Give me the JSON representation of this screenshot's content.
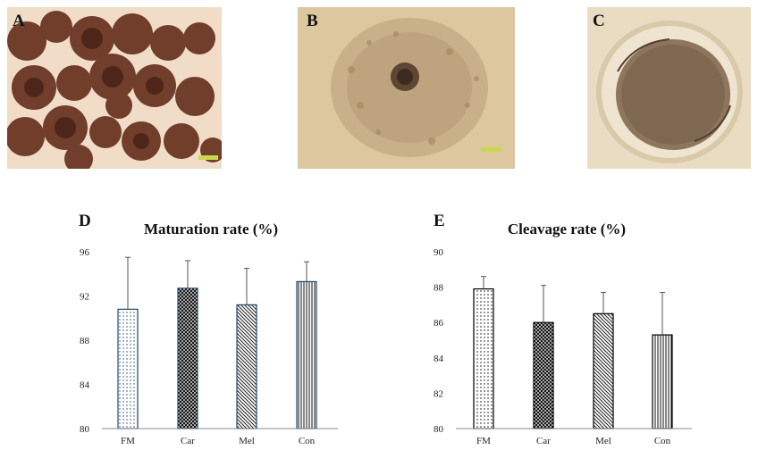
{
  "panels": {
    "A": {
      "letter": "A"
    },
    "B": {
      "letter": "B"
    },
    "C": {
      "letter": "C"
    },
    "D": {
      "letter": "D"
    },
    "E": {
      "letter": "E"
    }
  },
  "colors": {
    "micro_a_bg": "#f1dcc8",
    "micro_a_cell": "#5e2f1f",
    "micro_b_bg": "#dcc79f",
    "micro_c_bg": "#e9dcc3",
    "bar_outline_d": "#1f4a6e",
    "bar_outline_e": "#000000",
    "axis": "#333333"
  },
  "chart_data": [
    {
      "type": "bar",
      "title": "Maturation rate (%)",
      "categories": [
        "FM",
        "Car",
        "Mel",
        "Con"
      ],
      "values": [
        90.8,
        92.7,
        91.2,
        93.3
      ],
      "errors": [
        4.7,
        2.5,
        3.3,
        1.8
      ],
      "patterns": [
        "dots",
        "crosshatch",
        "diagonal",
        "vertical"
      ],
      "yticks": [
        "80",
        "84",
        "88",
        "92",
        "96"
      ],
      "ylim": [
        80,
        96
      ],
      "xlabel": "",
      "ylabel": "",
      "grid": false
    },
    {
      "type": "bar",
      "title": "Cleavage rate (%)",
      "categories": [
        "FM",
        "Car",
        "Mel",
        "Con"
      ],
      "values": [
        87.9,
        86.0,
        86.5,
        85.3
      ],
      "errors": [
        0.7,
        2.1,
        1.2,
        2.4
      ],
      "patterns": [
        "dots",
        "crosshatch",
        "diagonal",
        "vertical"
      ],
      "yticks": [
        "80",
        "82",
        "84",
        "86",
        "88",
        "90"
      ],
      "ylim": [
        80,
        90
      ],
      "xlabel": "",
      "ylabel": "",
      "grid": false
    }
  ]
}
